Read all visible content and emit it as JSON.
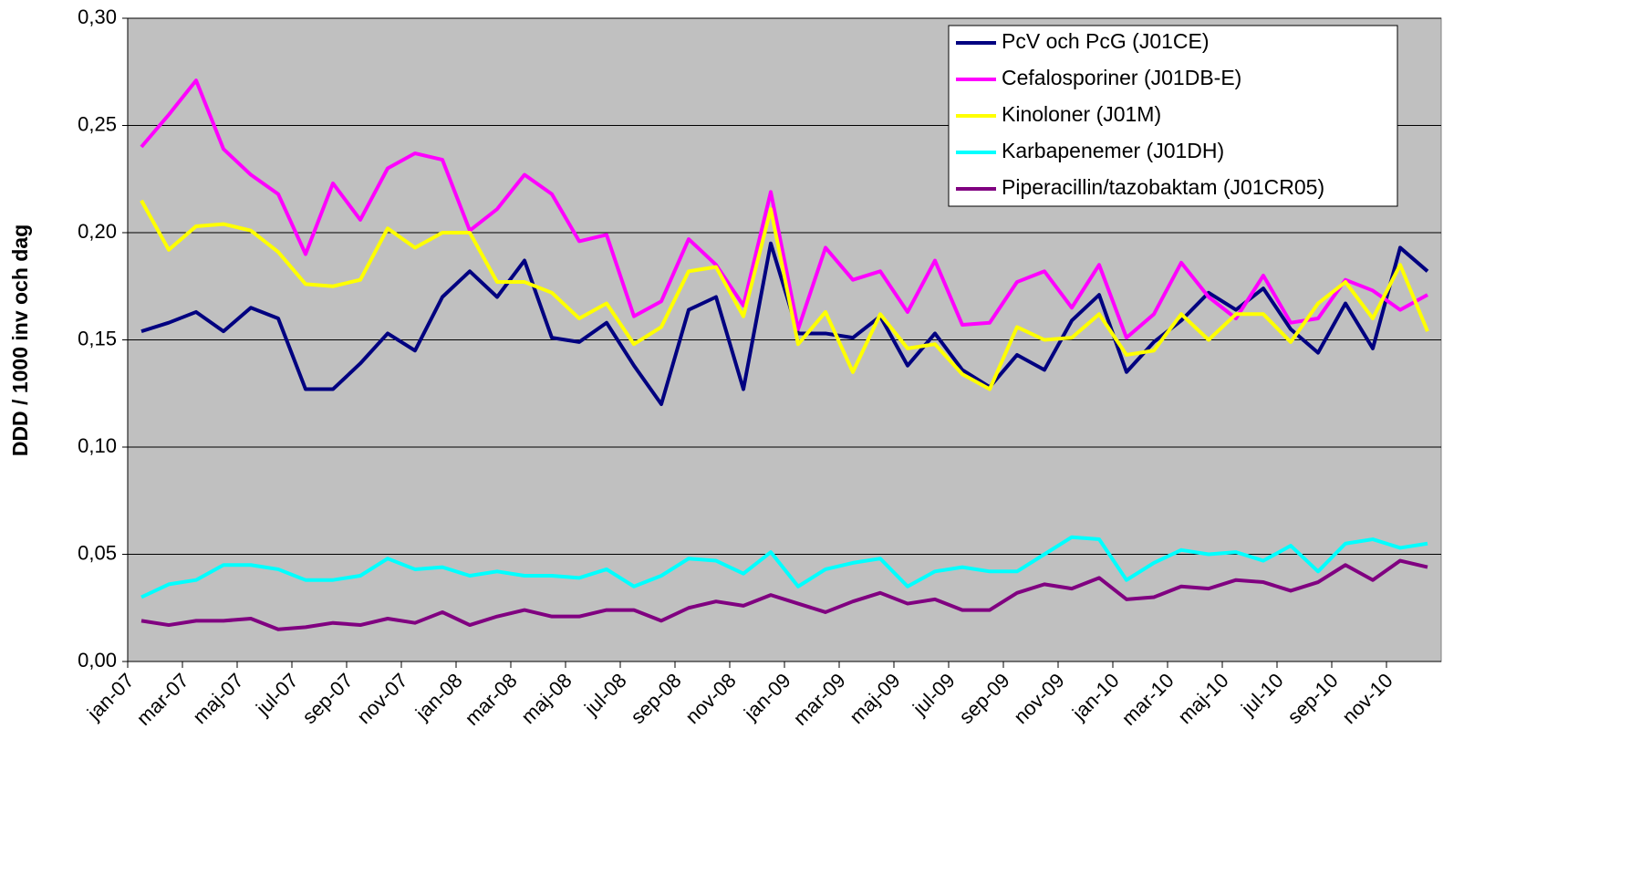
{
  "chart_data": {
    "type": "line",
    "ylabel": "DDD / 1000 inv och dag",
    "categories": [
      "jan-07",
      null,
      "mar-07",
      null,
      "maj-07",
      null,
      "jul-07",
      null,
      "sep-07",
      null,
      "nov-07",
      null,
      "jan-08",
      null,
      "mar-08",
      null,
      "maj-08",
      null,
      "jul-08",
      null,
      "sep-08",
      null,
      "nov-08",
      null,
      "jan-09",
      null,
      "mar-09",
      null,
      "maj-09",
      null,
      "jul-09",
      null,
      "sep-09",
      null,
      "nov-09",
      null,
      "jan-10",
      null,
      "mar-10",
      null,
      "maj-10",
      null,
      "jul-10",
      null,
      "sep-10",
      null,
      "nov-10",
      null
    ],
    "series": [
      {
        "name": "PcV och PcG (J01CE)",
        "color": "#000080",
        "values": [
          0.154,
          0.158,
          0.163,
          0.154,
          0.165,
          0.16,
          0.127,
          0.127,
          0.139,
          0.153,
          0.145,
          0.17,
          0.182,
          0.17,
          0.187,
          0.151,
          0.149,
          0.158,
          0.138,
          0.12,
          0.164,
          0.17,
          0.127,
          0.195,
          0.153,
          0.153,
          0.151,
          0.161,
          0.138,
          0.153,
          0.136,
          0.128,
          0.143,
          0.136,
          0.159,
          0.171,
          0.135,
          0.149,
          0.159,
          0.172,
          0.164,
          0.174,
          0.155,
          0.144,
          0.167,
          0.146,
          0.193,
          0.182
        ]
      },
      {
        "name": "Cefalosporiner (J01DB-E)",
        "color": "#ff00ff",
        "values": [
          0.24,
          0.255,
          0.271,
          0.239,
          0.227,
          0.218,
          0.19,
          0.223,
          0.206,
          0.23,
          0.237,
          0.234,
          0.201,
          0.211,
          0.227,
          0.218,
          0.196,
          0.199,
          0.161,
          0.168,
          0.197,
          0.185,
          0.166,
          0.219,
          0.155,
          0.193,
          0.178,
          0.182,
          0.163,
          0.187,
          0.157,
          0.158,
          0.177,
          0.182,
          0.165,
          0.185,
          0.151,
          0.162,
          0.186,
          0.17,
          0.16,
          0.18,
          0.158,
          0.16,
          0.178,
          0.173,
          0.164,
          0.171
        ]
      },
      {
        "name": "Kinoloner (J01M)",
        "color": "#ffff00",
        "values": [
          0.215,
          0.192,
          0.203,
          0.204,
          0.201,
          0.191,
          0.176,
          0.175,
          0.178,
          0.202,
          0.193,
          0.2,
          0.2,
          0.177,
          0.177,
          0.172,
          0.16,
          0.167,
          0.148,
          0.156,
          0.182,
          0.184,
          0.161,
          0.211,
          0.148,
          0.163,
          0.135,
          0.162,
          0.146,
          0.148,
          0.134,
          0.127,
          0.156,
          0.15,
          0.151,
          0.162,
          0.143,
          0.145,
          0.162,
          0.15,
          0.162,
          0.162,
          0.149,
          0.167,
          0.177,
          0.16,
          0.185,
          0.154
        ]
      },
      {
        "name": "Karbapenemer (J01DH)",
        "color": "#00ffff",
        "values": [
          0.03,
          0.036,
          0.038,
          0.045,
          0.045,
          0.043,
          0.038,
          0.038,
          0.04,
          0.048,
          0.043,
          0.044,
          0.04,
          0.042,
          0.04,
          0.04,
          0.039,
          0.043,
          0.035,
          0.04,
          0.048,
          0.047,
          0.041,
          0.051,
          0.035,
          0.043,
          0.046,
          0.048,
          0.035,
          0.042,
          0.044,
          0.042,
          0.042,
          0.05,
          0.058,
          0.057,
          0.038,
          0.046,
          0.052,
          0.05,
          0.051,
          0.047,
          0.054,
          0.042,
          0.055,
          0.057,
          0.053,
          0.055
        ]
      },
      {
        "name": "Piperacillin/tazobaktam (J01CR05)",
        "color": "#800080",
        "values": [
          0.019,
          0.017,
          0.019,
          0.019,
          0.02,
          0.015,
          0.016,
          0.018,
          0.017,
          0.02,
          0.018,
          0.023,
          0.017,
          0.021,
          0.024,
          0.021,
          0.021,
          0.024,
          0.024,
          0.019,
          0.025,
          0.028,
          0.026,
          0.031,
          0.027,
          0.023,
          0.028,
          0.032,
          0.027,
          0.029,
          0.024,
          0.024,
          0.032,
          0.036,
          0.034,
          0.039,
          0.029,
          0.03,
          0.035,
          0.034,
          0.038,
          0.037,
          0.033,
          0.037,
          0.045,
          0.038,
          0.047,
          0.044
        ]
      }
    ],
    "ylim": [
      0,
      0.3
    ],
    "yticks": [
      {
        "value": 0,
        "label": "0,00"
      },
      {
        "value": 0.05,
        "label": "0,05"
      },
      {
        "value": 0.1,
        "label": "0,10"
      },
      {
        "value": 0.15,
        "label": "0,15"
      },
      {
        "value": 0.2,
        "label": "0,20"
      },
      {
        "value": 0.25,
        "label": "0,25"
      },
      {
        "value": 0.3,
        "label": "0,30"
      }
    ],
    "grid": true,
    "plot_background": "#c0c0c0",
    "legend": "top-right"
  }
}
